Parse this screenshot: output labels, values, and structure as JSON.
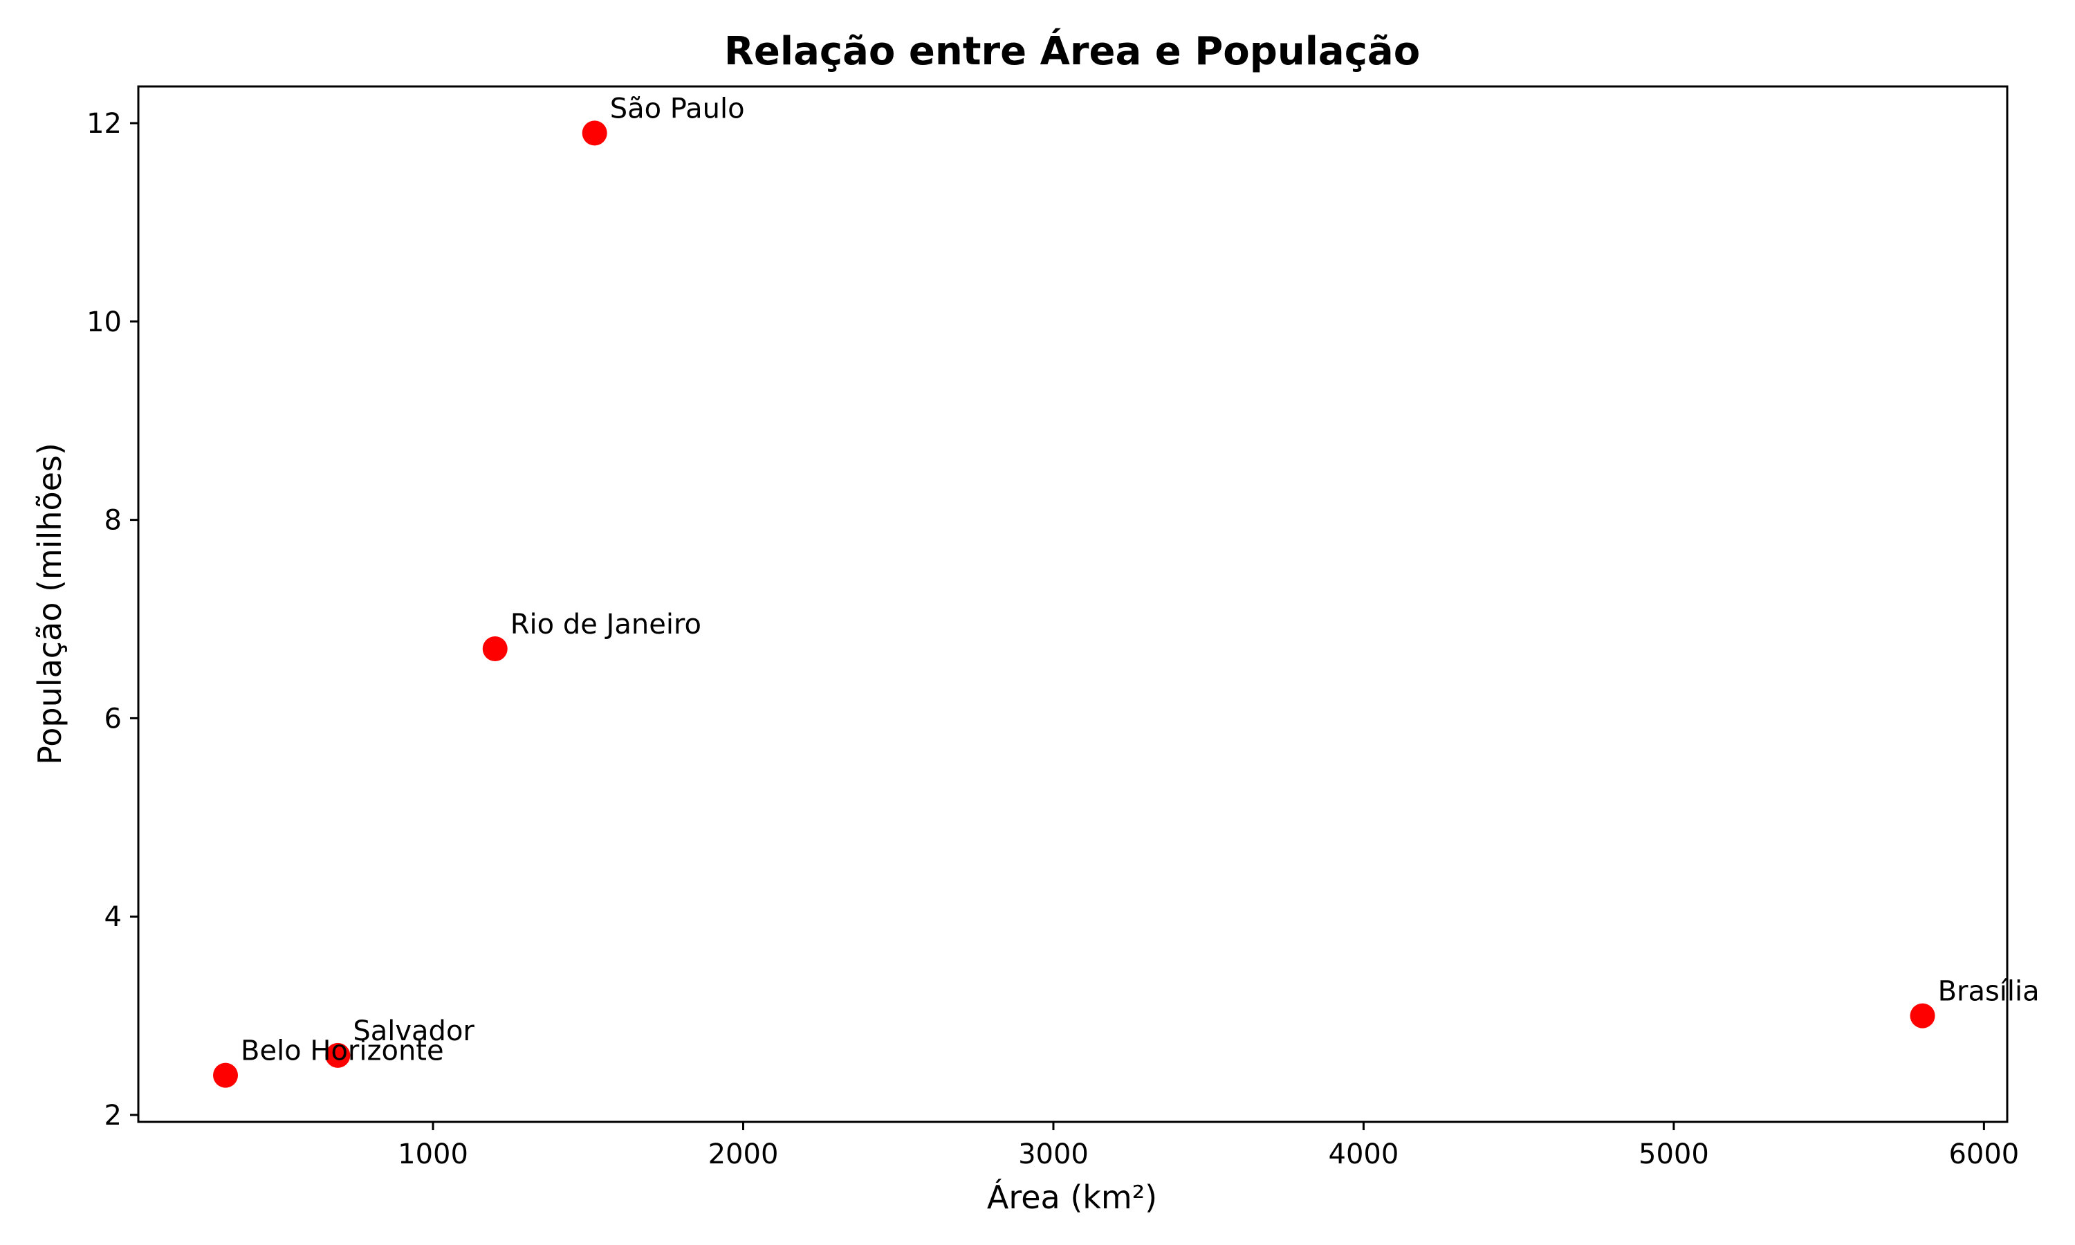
{
  "chart_data": {
    "type": "scatter",
    "title": "Relação entre Área e População",
    "xlabel": "Área (km²)",
    "ylabel": "População (milhões)",
    "xlim": [
      50,
      6075
    ],
    "ylim": [
      1.93,
      12.37
    ],
    "xticks": [
      1000,
      2000,
      3000,
      4000,
      5000,
      6000
    ],
    "yticks": [
      2,
      4,
      6,
      8,
      10,
      12
    ],
    "grid": false,
    "marker_color": "#ff0000",
    "points": [
      {
        "label": "São Paulo",
        "x": 1521,
        "y": 11.9
      },
      {
        "label": "Rio de Janeiro",
        "x": 1200,
        "y": 6.7
      },
      {
        "label": "Brasília",
        "x": 5802,
        "y": 3.0
      },
      {
        "label": "Salvador",
        "x": 693,
        "y": 2.6
      },
      {
        "label": "Belo Horizonte",
        "x": 331,
        "y": 2.4
      }
    ]
  }
}
